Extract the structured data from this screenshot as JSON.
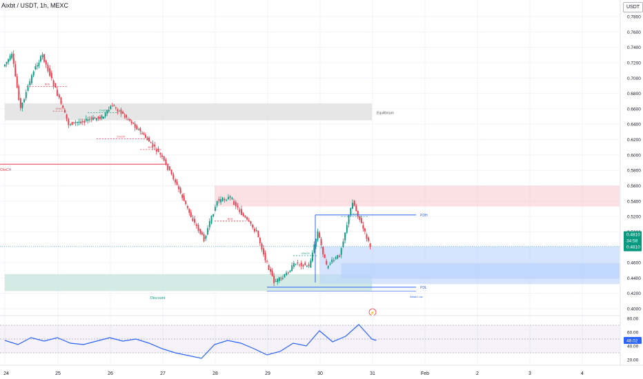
{
  "header": {
    "symbol_title": "Aixbt / USDT, 1h, MEXC",
    "currency_label": "USDT"
  },
  "price_axis": {
    "ticks": [
      "0.7800",
      "0.7600",
      "0.7400",
      "0.7200",
      "0.7000",
      "0.6800",
      "0.6600",
      "0.6400",
      "0.6200",
      "0.6000",
      "0.5800",
      "0.5600",
      "0.5400",
      "0.5200",
      "0.5000",
      "0.4800",
      "0.4600",
      "0.4400",
      "0.4200",
      "0.4000"
    ],
    "last_price_label": "0.4810",
    "countdown_label": "34:58",
    "last_price_label_2": "0.4810"
  },
  "time_axis": {
    "ticks": [
      "24",
      "25",
      "26",
      "27",
      "28",
      "29",
      "30",
      "31",
      "Feb",
      "2",
      "3",
      "4"
    ]
  },
  "rsi": {
    "ticks": [
      "80.00",
      "60.00",
      "40.00",
      "20.00"
    ],
    "current_label": "48.02"
  },
  "colors": {
    "up": "#089981",
    "down": "#f23645",
    "rsi_line": "#2962ff",
    "premium_zone": "#f7c9cd",
    "equilibrium_zone": "#e0e0e0",
    "discount_zone": "#c8e6dd",
    "demand_zone": "#bbd3fb"
  },
  "annotations": {
    "equilibrium": "Equilibrium",
    "discount": "Discount",
    "pdh": "PDH",
    "pdl": "PDL",
    "weak_low": "Weak Low",
    "choch_left": "ChoCH",
    "bos_labels": [
      "BOS",
      "BOS",
      "BOS",
      "BOS"
    ],
    "choch_labels": [
      "CHoCH",
      "CHoCH",
      "CHoCH",
      "CHoCH"
    ]
  },
  "chart_data": {
    "type": "candlestick",
    "title": "Aixbt / USDT, 1h, MEXC",
    "x_label": "",
    "y_label": "",
    "y_range": [
      0.4,
      0.78
    ],
    "x_range_dates": [
      "Jan 24",
      "Feb 4"
    ],
    "last_price": 0.481,
    "price_series": [
      {
        "t": "Jan 24 00:00",
        "p": 0.715
      },
      {
        "t": "Jan 24 04:00",
        "p": 0.73
      },
      {
        "t": "Jan 24 08:00",
        "p": 0.66
      },
      {
        "t": "Jan 24 14:00",
        "p": 0.71
      },
      {
        "t": "Jan 24 18:00",
        "p": 0.73
      },
      {
        "t": "Jan 25 00:00",
        "p": 0.685
      },
      {
        "t": "Jan 25 06:00",
        "p": 0.64
      },
      {
        "t": "Jan 25 14:00",
        "p": 0.645
      },
      {
        "t": "Jan 25 22:00",
        "p": 0.65
      },
      {
        "t": "Jan 26 02:00",
        "p": 0.665
      },
      {
        "t": "Jan 26 10:00",
        "p": 0.645
      },
      {
        "t": "Jan 26 18:00",
        "p": 0.62
      },
      {
        "t": "Jan 27 00:00",
        "p": 0.6
      },
      {
        "t": "Jan 27 06:00",
        "p": 0.57
      },
      {
        "t": "Jan 27 14:00",
        "p": 0.52
      },
      {
        "t": "Jan 27 20:00",
        "p": 0.49
      },
      {
        "t": "Jan 28 02:00",
        "p": 0.54
      },
      {
        "t": "Jan 28 08:00",
        "p": 0.545
      },
      {
        "t": "Jan 28 14:00",
        "p": 0.52
      },
      {
        "t": "Jan 28 20:00",
        "p": 0.5
      },
      {
        "t": "Jan 29 00:00",
        "p": 0.465
      },
      {
        "t": "Jan 29 04:00",
        "p": 0.435
      },
      {
        "t": "Jan 29 08:00",
        "p": 0.44
      },
      {
        "t": "Jan 29 14:00",
        "p": 0.46
      },
      {
        "t": "Jan 29 20:00",
        "p": 0.455
      },
      {
        "t": "Jan 30 00:00",
        "p": 0.5
      },
      {
        "t": "Jan 30 04:00",
        "p": 0.455
      },
      {
        "t": "Jan 30 10:00",
        "p": 0.47
      },
      {
        "t": "Jan 30 16:00",
        "p": 0.54
      },
      {
        "t": "Jan 30 20:00",
        "p": 0.51
      },
      {
        "t": "Jan 31 00:00",
        "p": 0.481
      }
    ],
    "zones": [
      {
        "name": "Premium",
        "from_date": "Jan 28",
        "to_date": "Feb 4",
        "low": 0.533,
        "high": 0.56
      },
      {
        "name": "Equilibrium",
        "from_date": "Jan 24",
        "to_date": "Jan 31",
        "low": 0.645,
        "high": 0.667
      },
      {
        "name": "Discount",
        "from_date": "Jan 24",
        "to_date": "Jan 31",
        "low": 0.423,
        "high": 0.445
      },
      {
        "name": "Demand",
        "from_date": "Jan 30",
        "to_date": "Feb 4",
        "low": 0.432,
        "high": 0.481
      }
    ],
    "levels": [
      {
        "name": "PDH",
        "price": 0.522
      },
      {
        "name": "PDL",
        "price": 0.428
      },
      {
        "name": "ChoCH",
        "price": 0.588
      }
    ],
    "rsi": {
      "ylim": [
        20,
        80
      ],
      "band": [
        30,
        70
      ],
      "current": 48.02,
      "series": [
        {
          "t": "Jan 24 00:00",
          "v": 48
        },
        {
          "t": "Jan 24 06:00",
          "v": 42
        },
        {
          "t": "Jan 24 12:00",
          "v": 52
        },
        {
          "t": "Jan 24 18:00",
          "v": 47
        },
        {
          "t": "Jan 25 00:00",
          "v": 52
        },
        {
          "t": "Jan 25 06:00",
          "v": 44
        },
        {
          "t": "Jan 25 12:00",
          "v": 42
        },
        {
          "t": "Jan 25 18:00",
          "v": 47
        },
        {
          "t": "Jan 26 00:00",
          "v": 52
        },
        {
          "t": "Jan 26 06:00",
          "v": 47
        },
        {
          "t": "Jan 26 12:00",
          "v": 50
        },
        {
          "t": "Jan 26 18:00",
          "v": 44
        },
        {
          "t": "Jan 27 00:00",
          "v": 36
        },
        {
          "t": "Jan 27 06:00",
          "v": 30
        },
        {
          "t": "Jan 27 12:00",
          "v": 26
        },
        {
          "t": "Jan 27 18:00",
          "v": 22
        },
        {
          "t": "Jan 28 00:00",
          "v": 42
        },
        {
          "t": "Jan 28 06:00",
          "v": 48
        },
        {
          "t": "Jan 28 12:00",
          "v": 44
        },
        {
          "t": "Jan 28 18:00",
          "v": 36
        },
        {
          "t": "Jan 29 00:00",
          "v": 27
        },
        {
          "t": "Jan 29 06:00",
          "v": 32
        },
        {
          "t": "Jan 29 12:00",
          "v": 44
        },
        {
          "t": "Jan 29 18:00",
          "v": 40
        },
        {
          "t": "Jan 30 00:00",
          "v": 62
        },
        {
          "t": "Jan 30 06:00",
          "v": 46
        },
        {
          "t": "Jan 30 12:00",
          "v": 54
        },
        {
          "t": "Jan 30 18:00",
          "v": 71
        },
        {
          "t": "Jan 31 00:00",
          "v": 50
        },
        {
          "t": "Jan 31 02:00",
          "v": 48.02
        }
      ]
    }
  }
}
